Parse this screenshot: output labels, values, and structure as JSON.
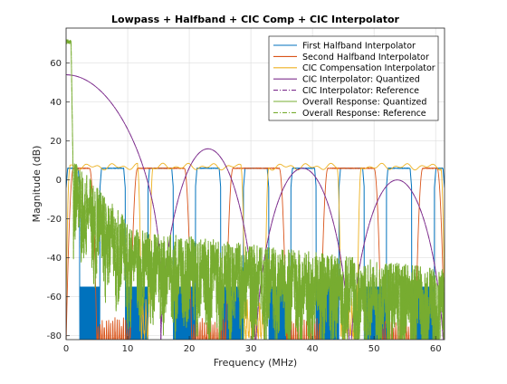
{
  "chart_data": {
    "type": "line",
    "title": "Lowpass + Halfband + CIC Comp + CIC Interpolator",
    "xlabel": "Frequency (MHz)",
    "ylabel": "Magnitude (dB)",
    "xlim": [
      0,
      61.44
    ],
    "ylim": [
      -82,
      78
    ],
    "xticks": [
      0,
      10,
      20,
      30,
      40,
      50,
      60
    ],
    "xtick_labels": [
      "0",
      "10",
      "20",
      "30",
      "40",
      "50",
      "60"
    ],
    "yticks": [
      -80,
      -60,
      -40,
      -20,
      0,
      20,
      40,
      60
    ],
    "ytick_labels": [
      "-80",
      "-60",
      "-40",
      "-20",
      "0",
      "20",
      "40",
      "60"
    ],
    "grid": true,
    "legend_position": "top-right",
    "series": [
      {
        "name": "First Halfband Interpolator",
        "color": "#0072BD",
        "style": "solid",
        "passband_level_db": 6,
        "stopband_floor_db": -55,
        "passband_edges_mhz": [
          [
            0,
            2.2
          ],
          [
            5.5,
            9.6
          ],
          [
            13.3,
            17.4
          ],
          [
            21.0,
            25.1
          ],
          [
            28.8,
            32.9
          ],
          [
            36.5,
            40.6
          ],
          [
            44.3,
            48.4
          ],
          [
            52.0,
            56.1
          ],
          [
            59.8,
            61.44
          ]
        ]
      },
      {
        "name": "Second Halfband Interpolator",
        "color": "#D95319",
        "style": "solid",
        "passband_level_db": 6,
        "passband_edges_mhz": [
          [
            0,
            5.0
          ],
          [
            10.4,
            20.4
          ],
          [
            25.9,
            35.8
          ],
          [
            41.3,
            51.2
          ],
          [
            56.7,
            61.44
          ]
        ]
      },
      {
        "name": "CIC Compensation Interpolator",
        "color": "#EDB120",
        "style": "solid",
        "passband_level_db": 6,
        "passband_edges_mhz": [
          [
            0,
            12.2
          ],
          [
            13.5,
            29.0
          ],
          [
            32.3,
            44.6
          ],
          [
            47.3,
            61.44
          ]
        ]
      },
      {
        "name": "CIC Interpolator: Quantized",
        "color": "#7E2F8E",
        "style": "solid",
        "peak_db": 54,
        "null_frequencies_mhz": [
          15.36,
          30.72,
          46.08,
          61.44
        ],
        "lobe_peaks": [
          [
            0,
            54
          ],
          [
            22.0,
            16
          ],
          [
            37.8,
            6
          ],
          [
            53.6,
            0
          ]
        ]
      },
      {
        "name": "CIC Interpolator: Reference",
        "color": "#7E2F8E",
        "style": "dash-dot"
      },
      {
        "name": "Overall Response: Quantized",
        "color": "#77AC30",
        "style": "solid",
        "passband_peak_db": 72
      },
      {
        "name": "Overall Response: Reference",
        "color": "#77AC30",
        "style": "dash-dot"
      }
    ]
  }
}
